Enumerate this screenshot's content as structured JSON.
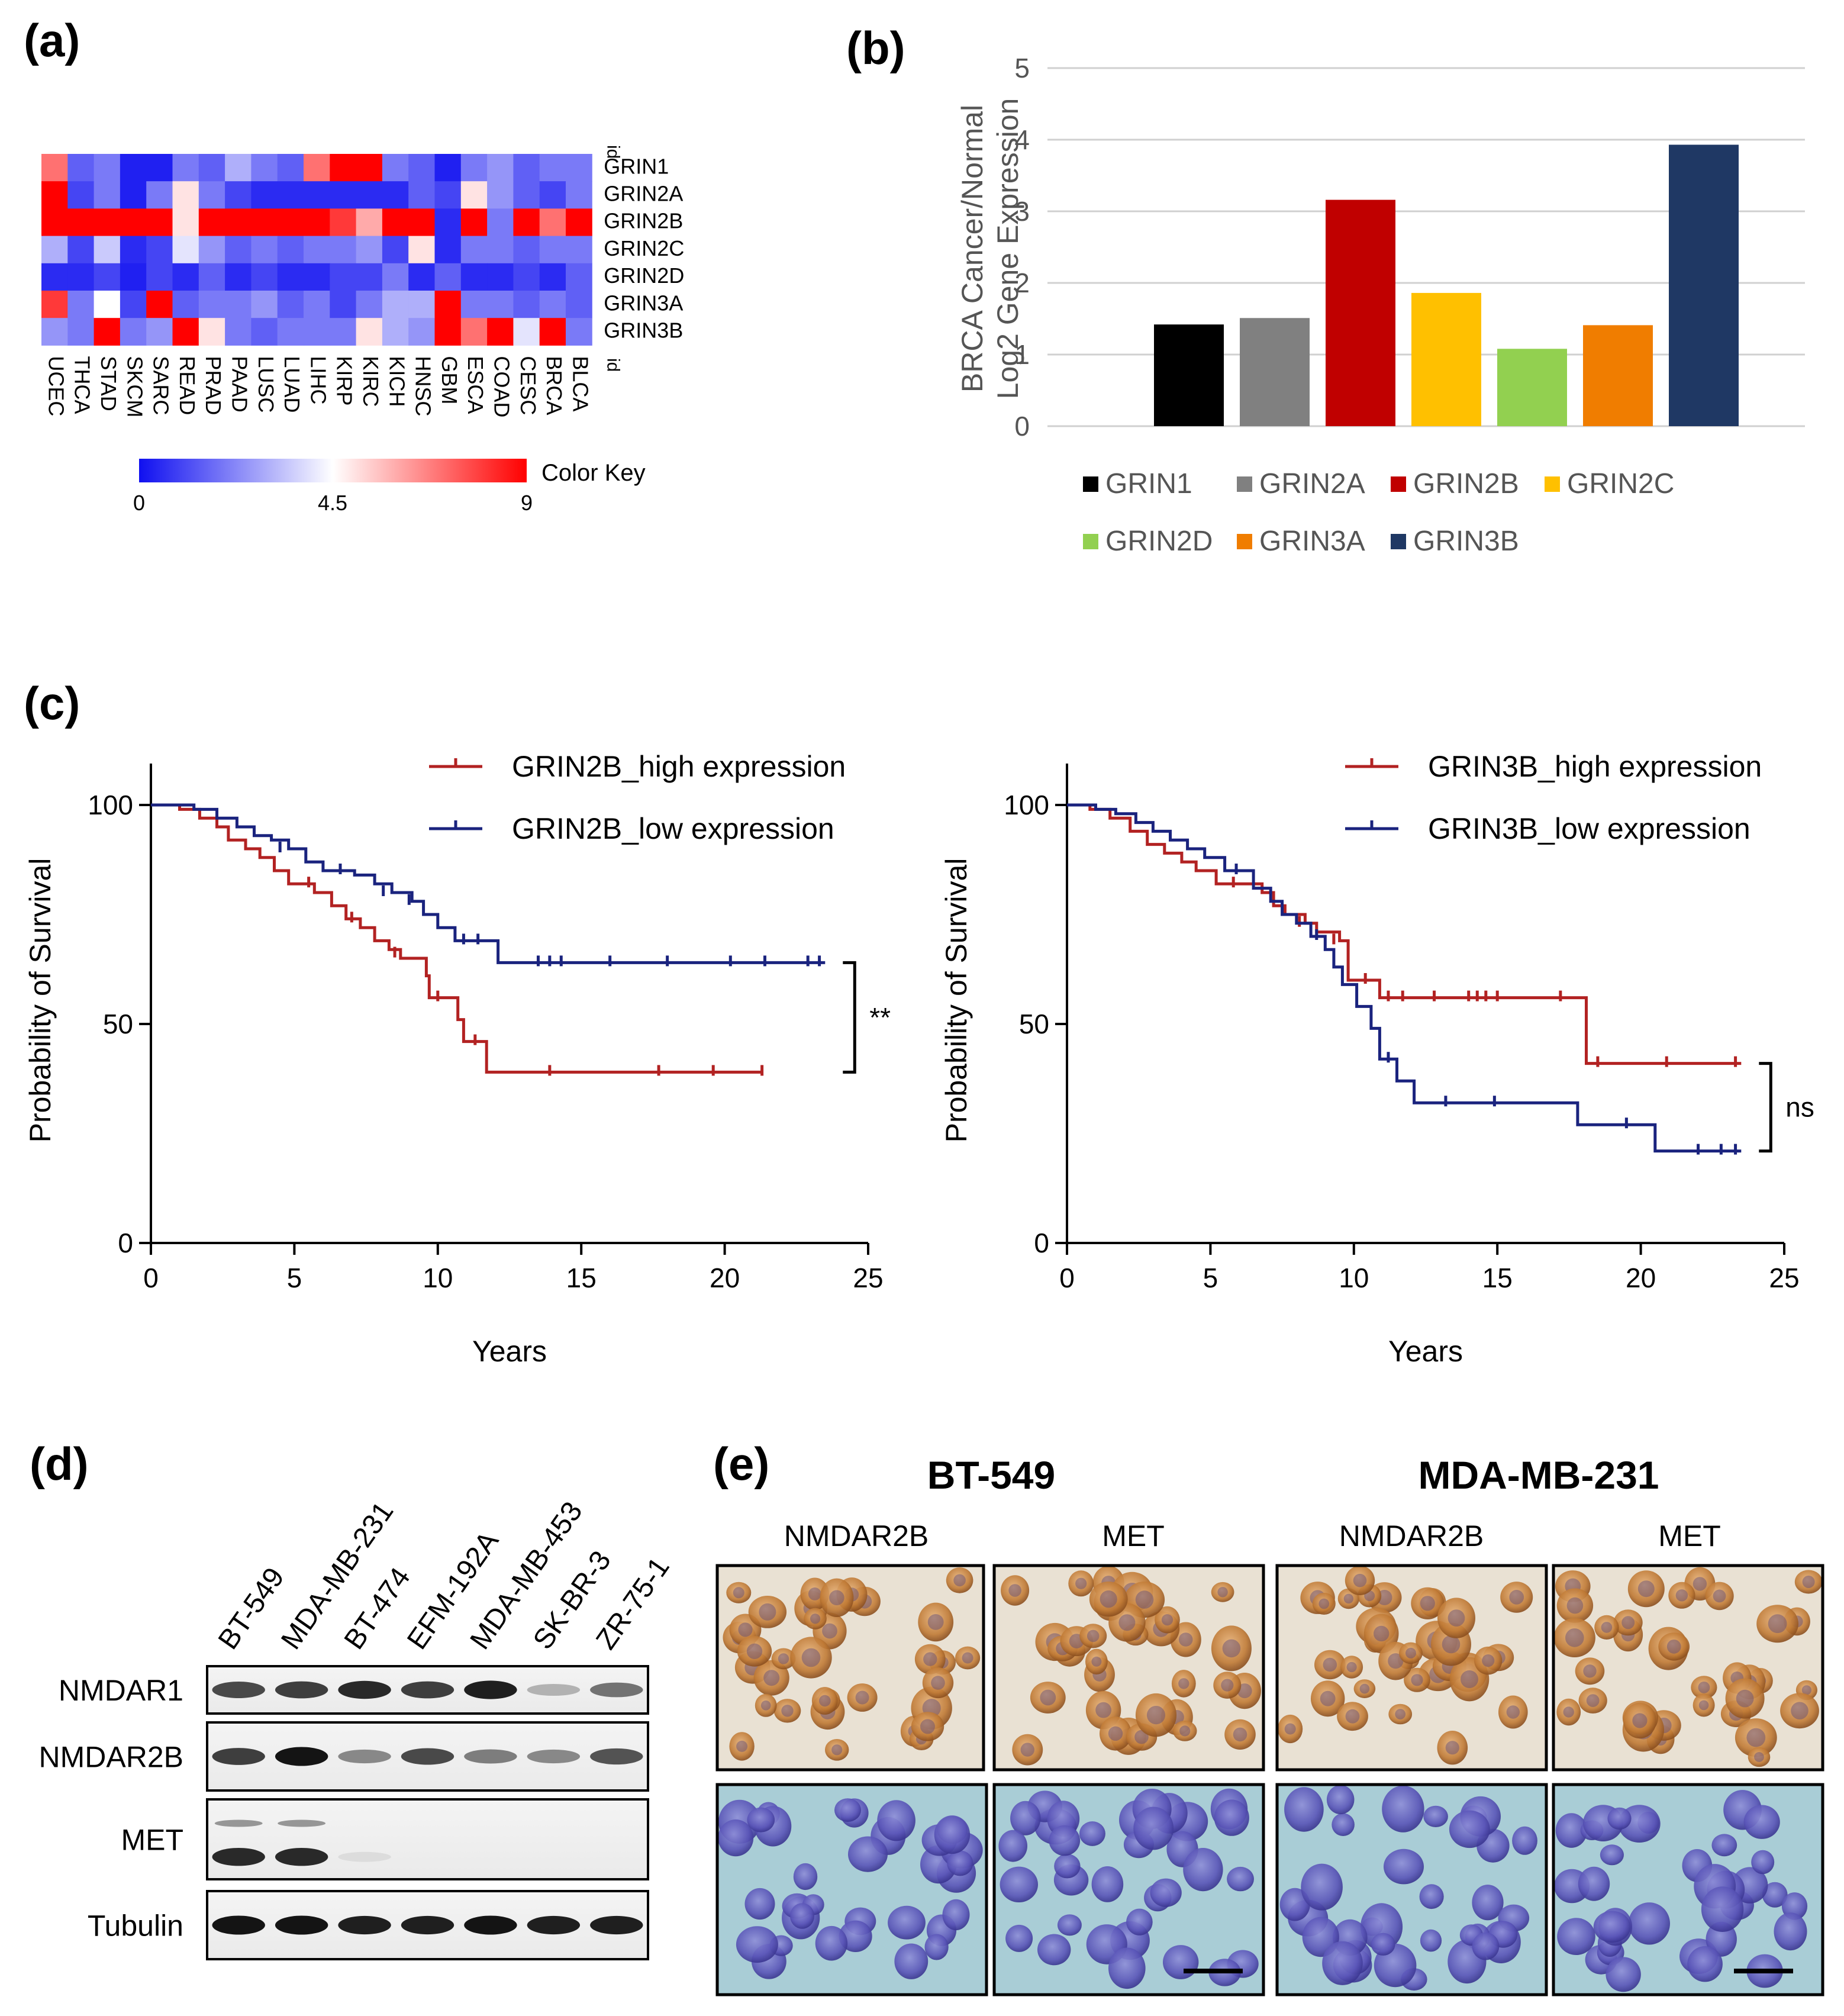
{
  "panel_labels": {
    "a": "(a)",
    "b": "(b)",
    "c": "(c)",
    "d": "(d)",
    "e": "(e)"
  },
  "heatmap": {
    "rows": [
      "GRIN1",
      "GRIN2A",
      "GRIN2B",
      "GRIN2C",
      "GRIN2D",
      "GRIN3A",
      "GRIN3B"
    ],
    "columns": [
      "UCEC",
      "THCA",
      "STAD",
      "SKCM",
      "SARC",
      "READ",
      "PRAD",
      "PAAD",
      "LUSC",
      "LUAD",
      "LIHC",
      "KIRP",
      "KIRC",
      "KICH",
      "HNSC",
      "GBM",
      "ESCA",
      "COAD",
      "CESC",
      "BRCA",
      "BLCA"
    ],
    "id_top": "id",
    "id_bottom": "id",
    "color_key_label": "Color Key",
    "color_key_ticks": [
      "0",
      "4.5",
      "9"
    ],
    "color_range": [
      0,
      9
    ],
    "colors": {
      "low": "#1010f0",
      "mid": "#ffffff",
      "high": "#ff0000"
    },
    "values": [
      [
        7,
        1.5,
        2,
        0.3,
        0.3,
        2,
        1.5,
        3,
        2,
        1.5,
        7,
        9,
        9,
        2,
        1.5,
        0.3,
        2,
        2.5,
        1.5,
        2,
        2
      ],
      [
        9,
        1,
        2,
        0.3,
        2,
        5,
        2,
        1,
        0.5,
        0.5,
        0.5,
        0.5,
        0.5,
        0.5,
        1.5,
        1,
        5,
        2.5,
        1.5,
        1,
        2
      ],
      [
        9,
        9,
        9,
        9,
        9,
        5,
        9,
        9,
        9,
        9,
        9,
        8,
        6,
        9,
        9,
        0.5,
        9,
        2,
        9,
        7,
        9
      ],
      [
        3,
        1,
        3.5,
        0.5,
        1,
        4,
        2.5,
        1.5,
        2,
        1.5,
        2,
        2,
        2.5,
        1,
        5,
        0.5,
        2,
        2,
        1.5,
        2,
        2
      ],
      [
        0.5,
        0.5,
        1,
        0.3,
        1,
        0.5,
        1.5,
        0.5,
        1,
        0.5,
        0.5,
        1,
        1,
        2,
        0.5,
        1.5,
        0.5,
        0.5,
        1,
        0.5,
        1.5
      ],
      [
        8,
        2,
        4.5,
        1,
        9,
        1.5,
        2,
        2,
        2.5,
        1.5,
        2,
        1,
        2,
        3,
        3,
        9,
        2,
        2,
        1.5,
        2,
        1.5
      ],
      [
        2.5,
        2,
        9,
        2,
        2.5,
        9,
        5,
        2,
        1.5,
        2,
        2,
        2,
        5,
        3,
        2.5,
        9,
        7,
        9,
        4,
        9,
        2
      ]
    ]
  },
  "chart_data": [
    {
      "type": "bar",
      "panel": "b",
      "categories": [
        "GRIN1",
        "GRIN2A",
        "GRIN2B",
        "GRIN2C",
        "GRIN2D",
        "GRIN3A",
        "GRIN3B"
      ],
      "values": [
        1.42,
        1.51,
        3.16,
        1.86,
        1.08,
        1.41,
        3.93
      ],
      "colors": [
        "#000000",
        "#808080",
        "#c00000",
        "#ffc000",
        "#92d050",
        "#f07d00",
        "#1f3864"
      ],
      "ylabel_line1": "BRCA Cancer/Normal",
      "ylabel_line2": "Log2 Gene Expression",
      "ylim": [
        0,
        5
      ],
      "yticks": [
        "0",
        "1",
        "2",
        "3",
        "4",
        "5"
      ],
      "grid": true,
      "legend_position": "bottom"
    },
    {
      "type": "line",
      "panel": "c-left",
      "xlabel": "Years",
      "ylabel": "Probability of Survival",
      "xlim": [
        0,
        25
      ],
      "ylim": [
        0,
        100
      ],
      "xticks": [
        "0",
        "5",
        "10",
        "15",
        "20",
        "25"
      ],
      "yticks": [
        "0",
        "50",
        "100"
      ],
      "significance": "**",
      "legend_position": "top-right",
      "series": [
        {
          "name": "GRIN2B_high expression",
          "color": "#b22222",
          "steps": [
            [
              0,
              100
            ],
            [
              1,
              99
            ],
            [
              1.7,
              97
            ],
            [
              2.3,
              95
            ],
            [
              2.7,
              92
            ],
            [
              3.3,
              90
            ],
            [
              3.8,
              88
            ],
            [
              4.3,
              85
            ],
            [
              4.8,
              82
            ],
            [
              5.7,
              80
            ],
            [
              6.3,
              77
            ],
            [
              6.8,
              74
            ],
            [
              7.3,
              72
            ],
            [
              7.8,
              69
            ],
            [
              8.3,
              67
            ],
            [
              8.7,
              65
            ],
            [
              9.6,
              61
            ],
            [
              9.7,
              56
            ],
            [
              10.7,
              51
            ],
            [
              10.9,
              46
            ],
            [
              11.7,
              39
            ],
            [
              21.3,
              39
            ]
          ],
          "censored": [
            [
              5.5,
              82
            ],
            [
              7,
              74
            ],
            [
              8.5,
              66
            ],
            [
              10,
              56
            ],
            [
              11.3,
              46
            ],
            [
              13.9,
              39
            ],
            [
              17.7,
              39
            ],
            [
              19.6,
              39
            ],
            [
              21.3,
              39
            ]
          ]
        },
        {
          "name": "GRIN2B_low expression",
          "color": "#1a237e",
          "steps": [
            [
              0,
              100
            ],
            [
              1.5,
              99
            ],
            [
              2.3,
              97
            ],
            [
              3,
              95
            ],
            [
              3.6,
              93
            ],
            [
              4.2,
              92
            ],
            [
              4.8,
              90
            ],
            [
              5.4,
              87
            ],
            [
              6,
              85
            ],
            [
              7.1,
              84
            ],
            [
              7.8,
              82
            ],
            [
              8.4,
              80
            ],
            [
              9.1,
              78
            ],
            [
              9.5,
              75
            ],
            [
              10,
              72
            ],
            [
              10.6,
              69
            ],
            [
              12.1,
              64
            ],
            [
              23.5,
              64
            ]
          ],
          "censored": [
            [
              4.5,
              90
            ],
            [
              6.6,
              85
            ],
            [
              8.1,
              80
            ],
            [
              9,
              78
            ],
            [
              10.9,
              69
            ],
            [
              11.4,
              69
            ],
            [
              13.5,
              64
            ],
            [
              13.9,
              64
            ],
            [
              14.3,
              64
            ],
            [
              16,
              64
            ],
            [
              18,
              64
            ],
            [
              20.2,
              64
            ],
            [
              21.4,
              64
            ],
            [
              22.9,
              64
            ],
            [
              23.3,
              64
            ]
          ]
        }
      ]
    },
    {
      "type": "line",
      "panel": "c-right",
      "xlabel": "Years",
      "ylabel": "Probability of Survival",
      "xlim": [
        0,
        25
      ],
      "ylim": [
        0,
        100
      ],
      "xticks": [
        "0",
        "5",
        "10",
        "15",
        "20",
        "25"
      ],
      "yticks": [
        "0",
        "50",
        "100"
      ],
      "significance": "ns",
      "legend_position": "top-right",
      "series": [
        {
          "name": "GRIN3B_high expression",
          "color": "#b22222",
          "steps": [
            [
              0,
              100
            ],
            [
              0.8,
              99
            ],
            [
              1.5,
              97
            ],
            [
              2.2,
              94
            ],
            [
              2.8,
              91
            ],
            [
              3.4,
              89
            ],
            [
              4,
              87
            ],
            [
              4.5,
              85
            ],
            [
              5.2,
              82
            ],
            [
              6.8,
              80
            ],
            [
              7.2,
              77
            ],
            [
              7.6,
              75
            ],
            [
              8.3,
              73
            ],
            [
              8.7,
              71
            ],
            [
              9.5,
              69
            ],
            [
              9.8,
              60
            ],
            [
              10.9,
              56
            ],
            [
              18,
              56
            ],
            [
              18.1,
              41
            ],
            [
              23.5,
              41
            ]
          ],
          "censored": [
            [
              5.8,
              82
            ],
            [
              8.1,
              73
            ],
            [
              9.3,
              69
            ],
            [
              10.4,
              60
            ],
            [
              11.2,
              56
            ],
            [
              11.7,
              56
            ],
            [
              12.8,
              56
            ],
            [
              14,
              56
            ],
            [
              14.3,
              56
            ],
            [
              14.6,
              56
            ],
            [
              15,
              56
            ],
            [
              17.2,
              56
            ],
            [
              18.5,
              41
            ],
            [
              20.9,
              41
            ],
            [
              23.3,
              41
            ]
          ]
        },
        {
          "name": "GRIN3B_low expression",
          "color": "#1a237e",
          "steps": [
            [
              0,
              100
            ],
            [
              1,
              99
            ],
            [
              1.7,
              98
            ],
            [
              2.4,
              96
            ],
            [
              3,
              94
            ],
            [
              3.6,
              92
            ],
            [
              4.2,
              90
            ],
            [
              4.8,
              88
            ],
            [
              5.5,
              85
            ],
            [
              6.5,
              81
            ],
            [
              7.1,
              78
            ],
            [
              7.5,
              75
            ],
            [
              8,
              73
            ],
            [
              8.5,
              70
            ],
            [
              9,
              67
            ],
            [
              9.3,
              63
            ],
            [
              9.6,
              59
            ],
            [
              10.1,
              54
            ],
            [
              10.6,
              49
            ],
            [
              10.9,
              42
            ],
            [
              11.5,
              37
            ],
            [
              12.1,
              32
            ],
            [
              17.7,
              32
            ],
            [
              17.8,
              27
            ],
            [
              20.4,
              27
            ],
            [
              20.5,
              21
            ],
            [
              23.5,
              21
            ]
          ],
          "censored": [
            [
              5.9,
              85
            ],
            [
              8.7,
              70
            ],
            [
              11.2,
              42
            ],
            [
              13.2,
              32
            ],
            [
              14.9,
              32
            ],
            [
              19.5,
              27
            ],
            [
              22,
              21
            ],
            [
              22.8,
              21
            ],
            [
              23.3,
              21
            ]
          ]
        }
      ]
    }
  ],
  "western_blot": {
    "cell_lines": [
      "BT-549",
      "MDA-MB-231",
      "BT-474",
      "EFM-192A",
      "MDA-MB-453",
      "SK-BR-3",
      "ZR-75-1"
    ],
    "proteins": [
      "NMDAR1",
      "NMDAR2B",
      "MET",
      "Tubulin"
    ],
    "band_intensity": [
      [
        0.75,
        0.8,
        0.9,
        0.8,
        0.95,
        0.25,
        0.55
      ],
      [
        0.8,
        1.0,
        0.45,
        0.75,
        0.5,
        0.45,
        0.7
      ],
      [
        0.9,
        0.9,
        0.05,
        0.03,
        0.02,
        0.02,
        0.02
      ],
      [
        1.0,
        1.0,
        0.95,
        0.95,
        1.0,
        0.95,
        0.95
      ]
    ]
  },
  "ihc": {
    "groups": [
      "BT-549",
      "MDA-MB-231"
    ],
    "stains": [
      "NMDAR2B",
      "MET",
      "NMDAR2B",
      "MET"
    ]
  }
}
